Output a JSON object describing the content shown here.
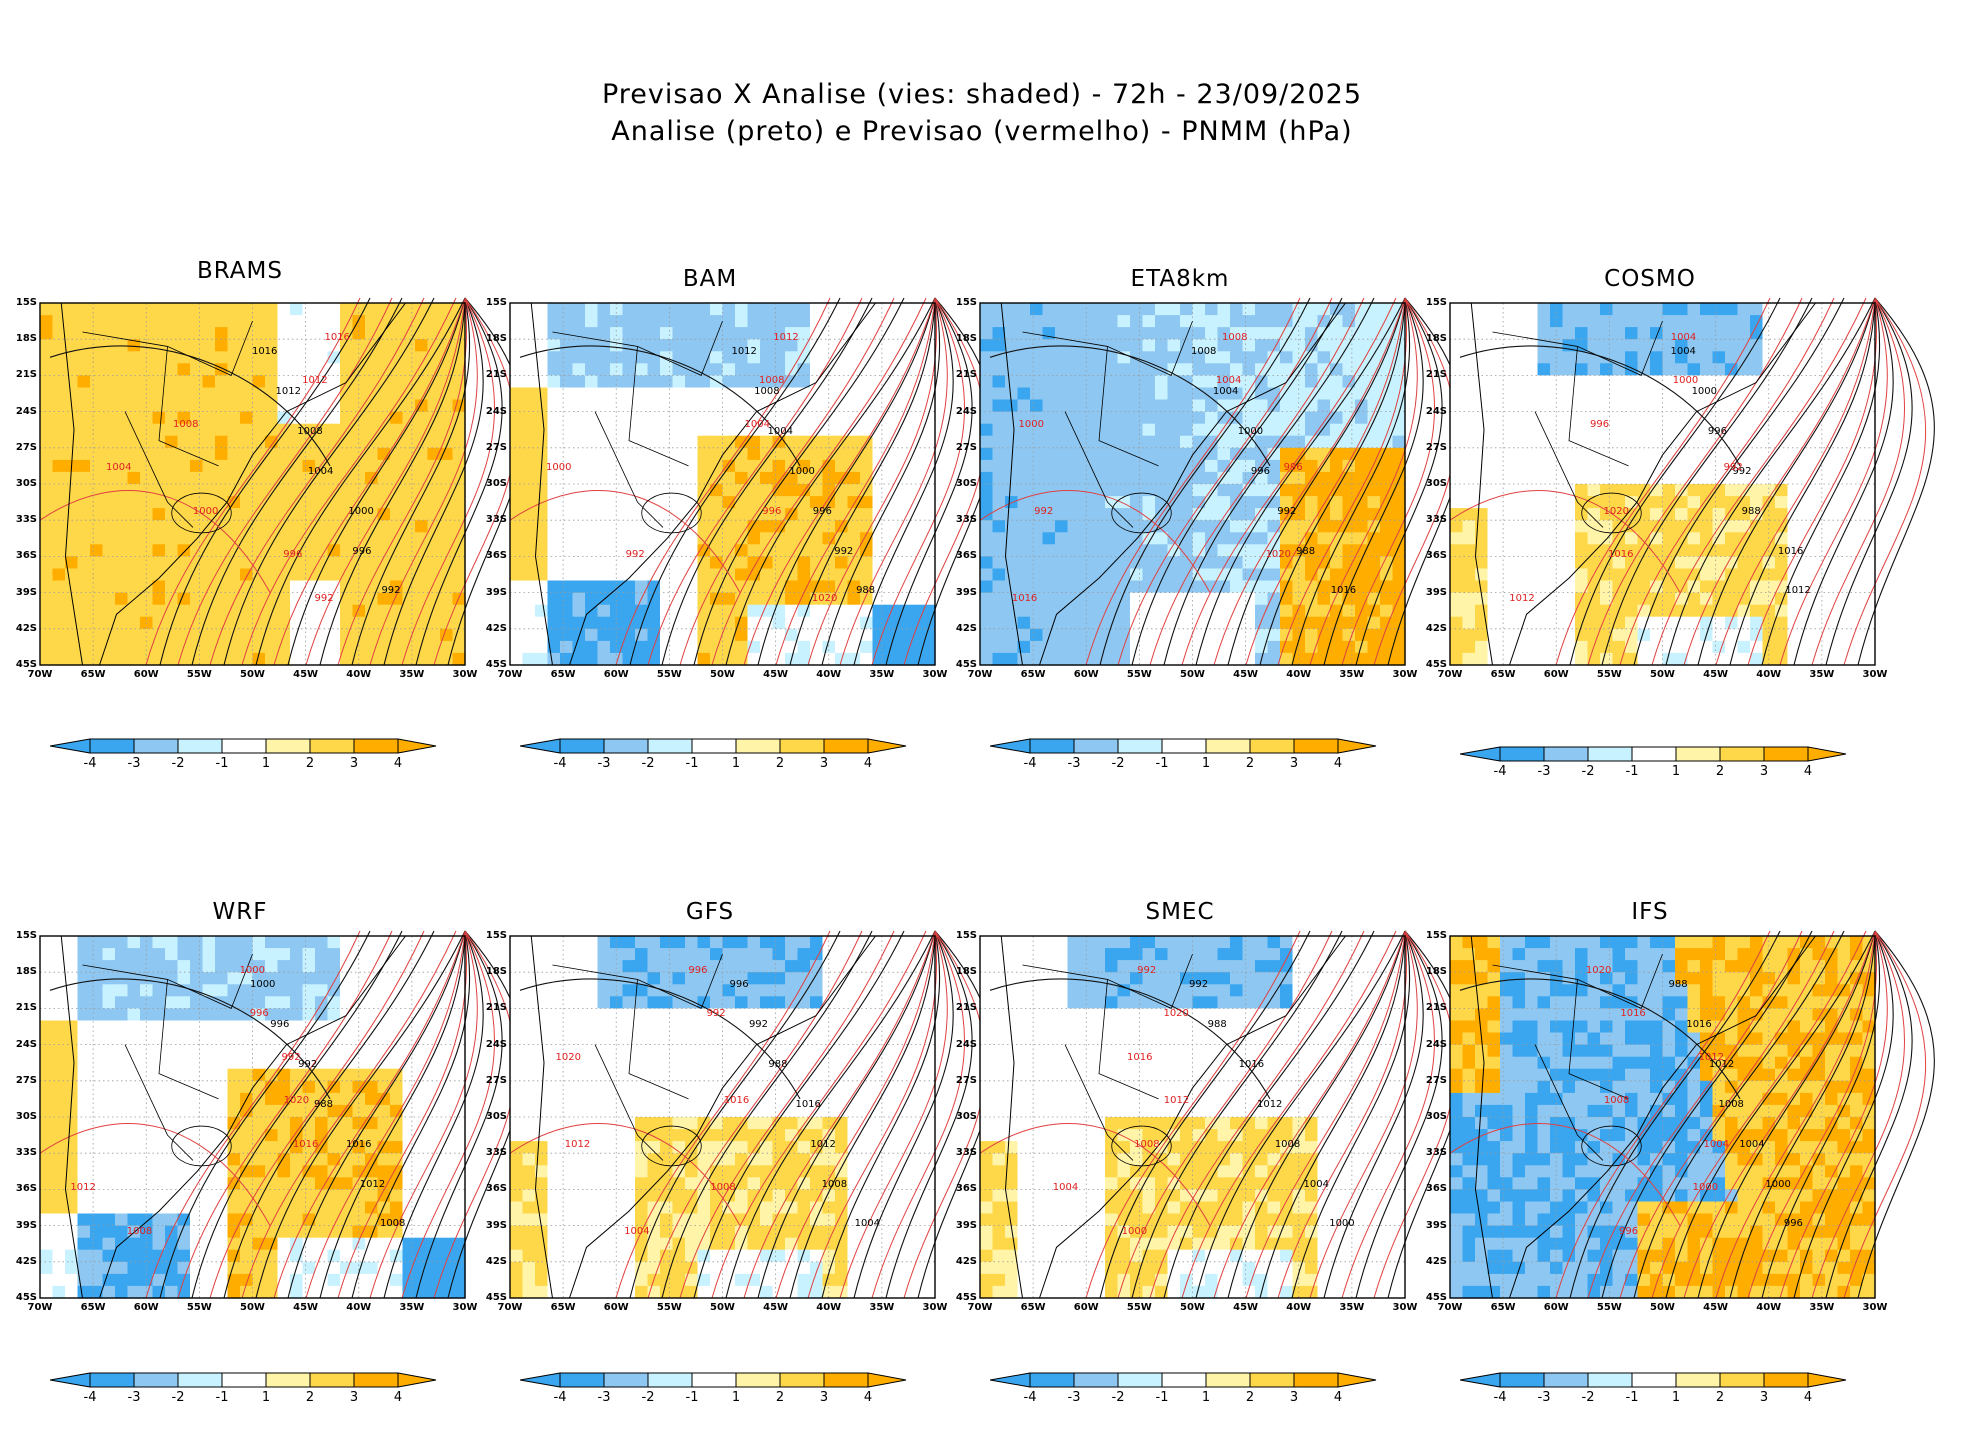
{
  "title": {
    "line1": "Previsao X Analise (vies: shaded) - 72h - 23/09/2025",
    "line2": "Analise (preto) e Previsao (vermelho) - PNMM (hPa)"
  },
  "axes": {
    "lat_labels": [
      "15S",
      "18S",
      "21S",
      "24S",
      "27S",
      "30S",
      "33S",
      "36S",
      "39S",
      "42S",
      "45S"
    ],
    "lon_labels": [
      "70W",
      "65W",
      "60W",
      "55W",
      "50W",
      "45W",
      "40W",
      "35W",
      "30W"
    ]
  },
  "colorbar": {
    "labels": [
      "-4",
      "-3",
      "-2",
      "-1",
      "1",
      "2",
      "3",
      "4"
    ],
    "colors": [
      "#3aa6f0",
      "#8ec8f2",
      "#c8f2ff",
      "#ffffff",
      "#fff4a8",
      "#ffd84a",
      "#ffae00"
    ]
  },
  "contour_labels_black": [
    "1016",
    "1012",
    "1008",
    "1004",
    "1000",
    "996",
    "992",
    "988"
  ],
  "contour_labels_red": [
    "1020",
    "1016",
    "1012",
    "1008",
    "1004",
    "1000",
    "996",
    "992"
  ],
  "panels": [
    {
      "name": "BRAMS",
      "bias": "warm"
    },
    {
      "name": "BAM",
      "bias": "mixed"
    },
    {
      "name": "ETA8km",
      "bias": "cold"
    },
    {
      "name": "COSMO",
      "bias": "mixed-light"
    },
    {
      "name": "WRF",
      "bias": "mixed"
    },
    {
      "name": "GFS",
      "bias": "mixed-light"
    },
    {
      "name": "SMEC",
      "bias": "mixed-light"
    },
    {
      "name": "IFS",
      "bias": "split"
    }
  ]
}
